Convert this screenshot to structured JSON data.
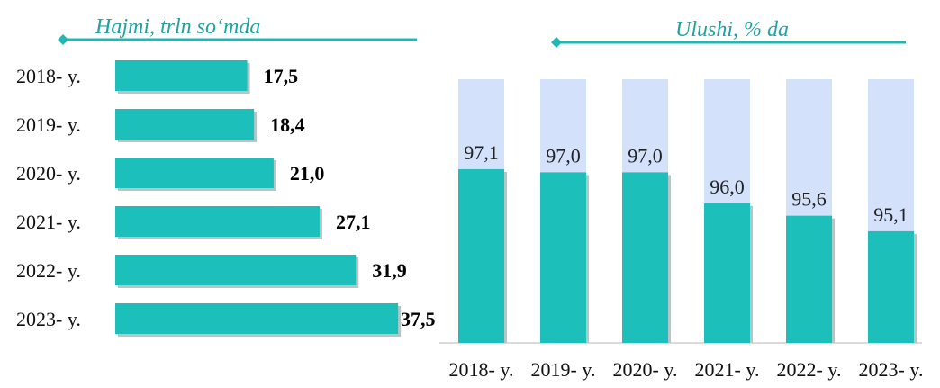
{
  "colors": {
    "bar": "#1dbfbb",
    "bar_shadow": "#b9c4c4",
    "track": "#d3e1fb",
    "title": "#1fa3a0",
    "arrow_line": "#1fb8b3",
    "axis": "#cfcfcf"
  },
  "chart_data": [
    {
      "type": "bar",
      "orientation": "horizontal",
      "title": "Hajmi, trln so‘mda",
      "categories": [
        "2018- y.",
        "2019- y.",
        "2020- y.",
        "2021- y.",
        "2022- y.",
        "2023- y."
      ],
      "values": [
        17.5,
        18.4,
        21.0,
        27.1,
        31.9,
        37.5
      ],
      "value_labels": [
        "17,5",
        "18,4",
        "21,0",
        "27,1",
        "31,9",
        "37,5"
      ],
      "xlim": [
        0,
        38.2
      ],
      "grid": false,
      "legend": "none"
    },
    {
      "type": "bar",
      "orientation": "vertical",
      "stacked_to_100": true,
      "title": "Ulushi, % da",
      "categories": [
        "2018- y.",
        "2019- y.",
        "2020- y.",
        "2021- y.",
        "2022- y.",
        "2023- y."
      ],
      "values": [
        97.1,
        97.0,
        97.0,
        96.0,
        95.6,
        95.1
      ],
      "value_labels": [
        "97,1",
        "97,0",
        "97,0",
        "96,0",
        "95,6",
        "95,1"
      ],
      "ylim": [
        91.5,
        100
      ],
      "grid": false,
      "legend": "none"
    }
  ]
}
